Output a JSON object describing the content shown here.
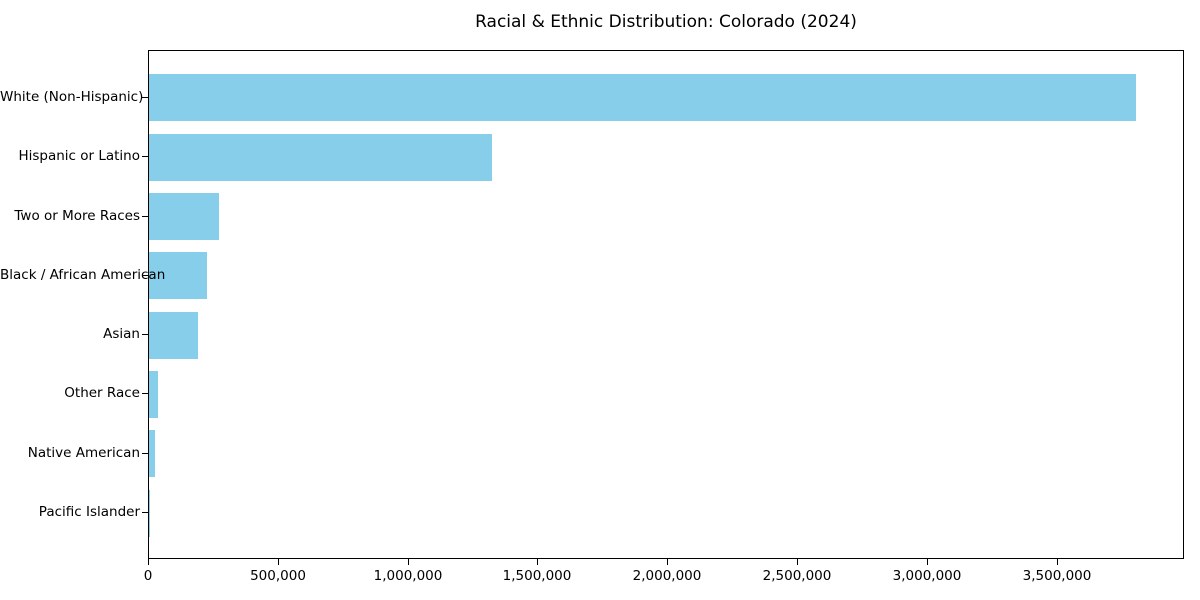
{
  "chart_data": {
    "type": "bar",
    "orientation": "horizontal",
    "title": "Racial & Ethnic Distribution: Colorado (2024)",
    "xlabel": "",
    "ylabel": "",
    "categories": [
      "White (Non-Hispanic)",
      "Hispanic or Latino",
      "Two or More Races",
      "Black / African American",
      "Asian",
      "Other Race",
      "Native American",
      "Pacific Islander"
    ],
    "values": [
      3800000,
      1320000,
      270000,
      225000,
      188000,
      36000,
      23000,
      5000
    ],
    "xlim": [
      0,
      3990000
    ],
    "x_ticks": [
      0,
      500000,
      1000000,
      1500000,
      2000000,
      2500000,
      3000000,
      3500000
    ],
    "x_tick_labels": [
      "0",
      "500,000",
      "1,000,000",
      "1,500,000",
      "2,000,000",
      "2,500,000",
      "3,000,000",
      "3,500,000"
    ],
    "grid": false,
    "legend": null,
    "bar_color": "#87CEEB"
  },
  "colors": {
    "bar": "#87CEEB",
    "spine": "#000000",
    "text": "#000000",
    "background": "#ffffff"
  }
}
